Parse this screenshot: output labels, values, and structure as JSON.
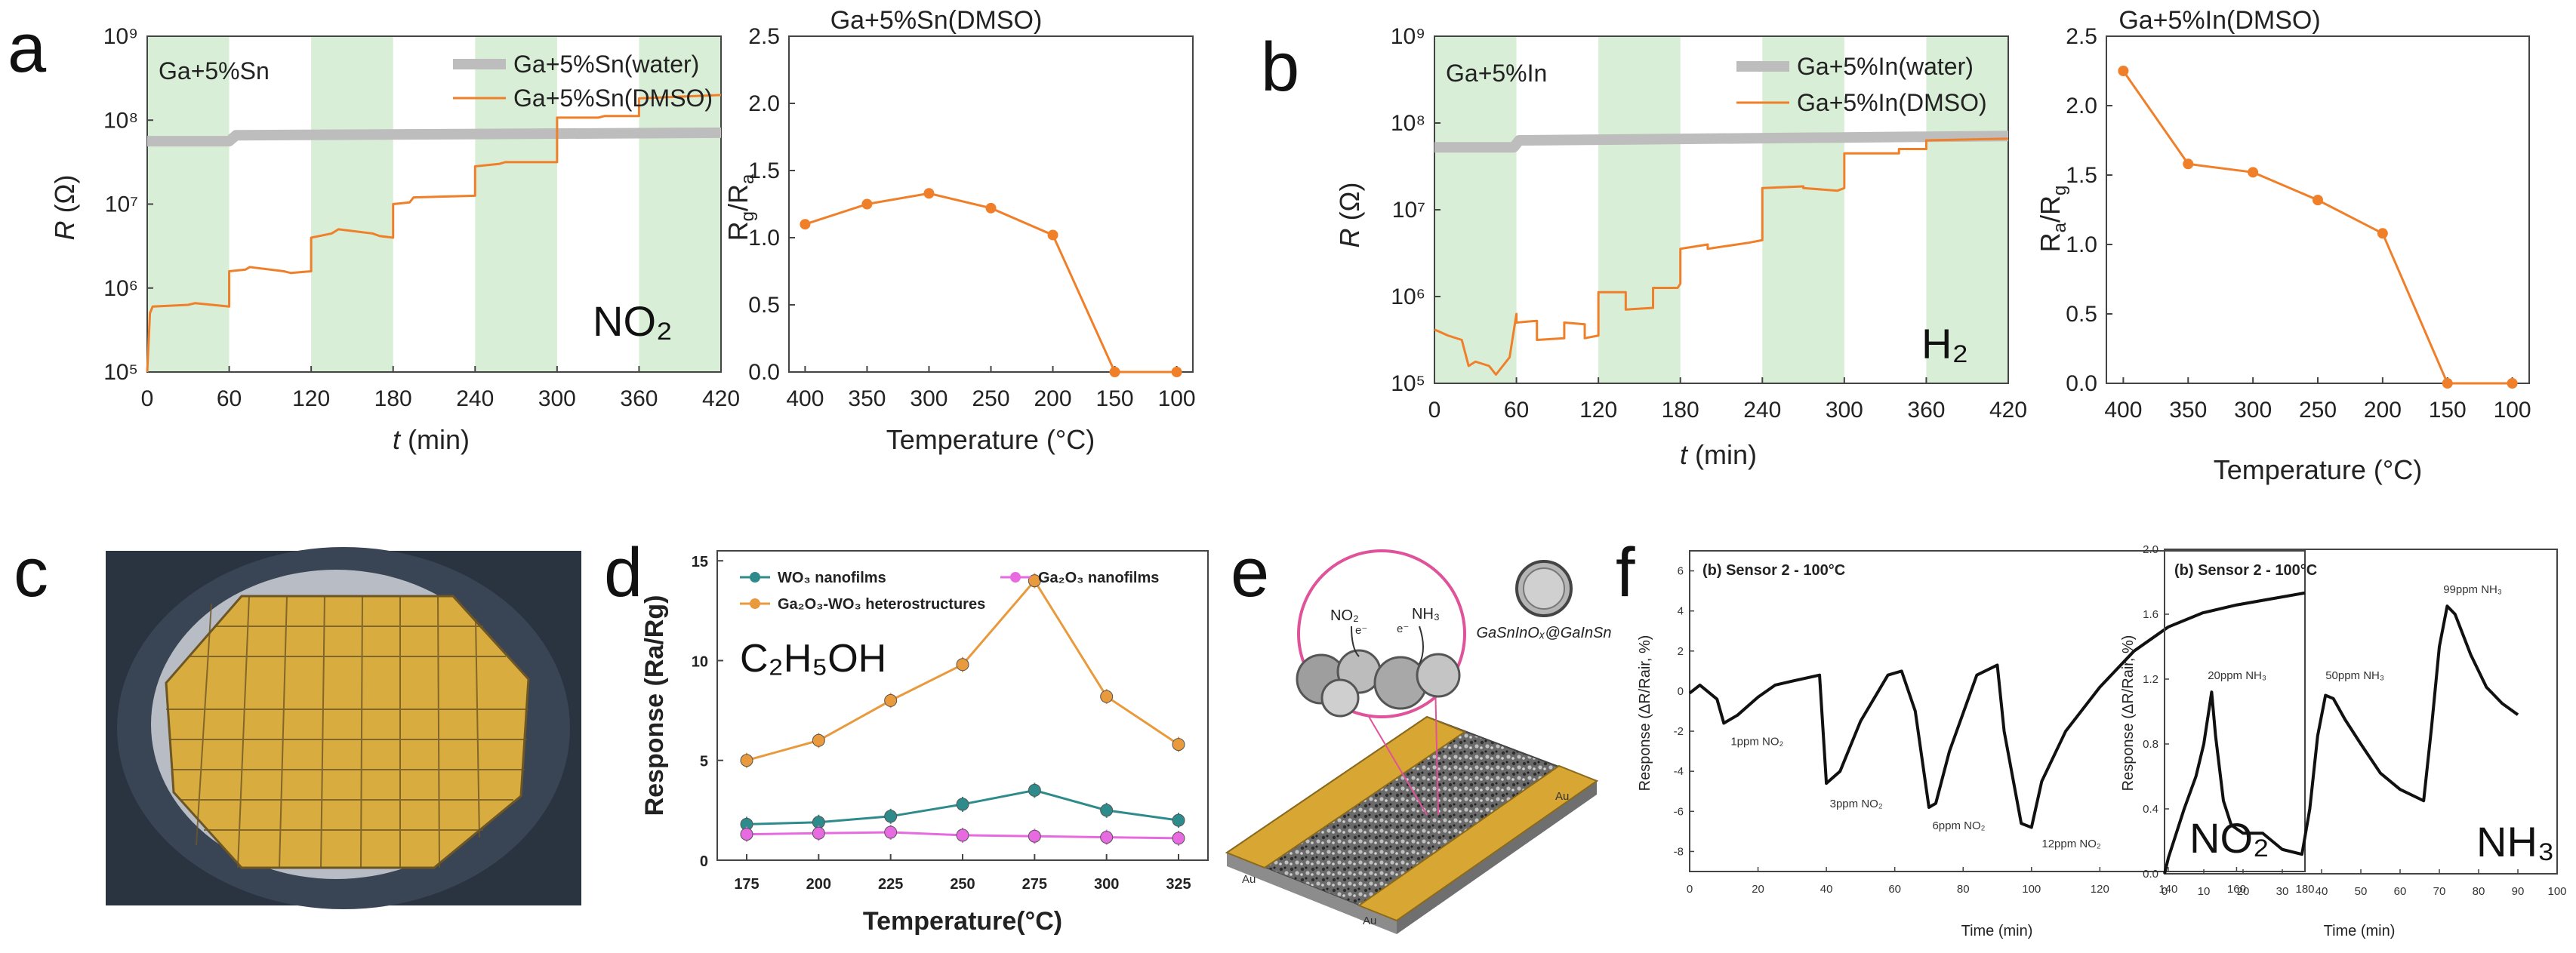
{
  "panel_labels": {
    "a": "a",
    "b": "b",
    "c": "c",
    "d": "d",
    "e": "e",
    "f": "f"
  },
  "colors": {
    "orange": "#f07f2a",
    "gray": "#bdbdbd",
    "green_band": "#d9eed6",
    "teal": "#2e8b8b",
    "magenta": "#e86ae0",
    "amber": "#e89a3c",
    "gold": "#d8a632",
    "pink": "#e0529a",
    "black": "#111111"
  },
  "panel_e": {
    "no2": "NO₂",
    "nh3": "NH₃",
    "electron": "e⁻",
    "particle_label": "GaSnInOₓ@GaInSn",
    "electrode_left": "Au",
    "electrode_right": "Au",
    "electrode_bottom": "Au"
  },
  "chart_data": [
    {
      "id": "a-left",
      "type": "line",
      "title": "",
      "xlabel_italic": "t",
      "xlabel_rest": " (min)",
      "ylabel_italic": "R",
      "ylabel_rest": " (Ω)",
      "x_ticks": [
        "0",
        "60",
        "120",
        "180",
        "240",
        "300",
        "360",
        "420"
      ],
      "y_ticks": [
        "10⁵",
        "10⁶",
        "10⁷",
        "10⁸",
        "10⁹"
      ],
      "xlim": [
        0,
        420
      ],
      "ylog_range": [
        5,
        9
      ],
      "bands": [
        [
          0,
          60
        ],
        [
          120,
          180
        ],
        [
          240,
          300
        ],
        [
          360,
          420
        ]
      ],
      "inner_label": "Ga+5%Sn",
      "gas": "NO₂",
      "legend": [
        "Ga+5%Sn(water)",
        "Ga+5%Sn(DMSO)"
      ],
      "series": [
        {
          "name": "Ga+5%Sn(water)",
          "style": "gray",
          "x": [
            0,
            60,
            65,
            420
          ],
          "log10y": [
            7.75,
            7.75,
            7.82,
            7.85
          ]
        },
        {
          "name": "Ga+5%Sn(DMSO)",
          "style": "orange",
          "x": [
            0,
            2,
            4,
            30,
            35,
            60,
            60,
            72,
            75,
            100,
            105,
            120,
            120,
            135,
            140,
            165,
            170,
            180,
            180,
            192,
            195,
            240,
            240,
            258,
            262,
            300,
            300,
            330,
            335,
            360,
            360,
            420
          ],
          "log10y": [
            5.0,
            5.7,
            5.78,
            5.8,
            5.82,
            5.78,
            6.2,
            6.22,
            6.25,
            6.2,
            6.18,
            6.2,
            6.6,
            6.65,
            6.7,
            6.65,
            6.62,
            6.6,
            7.0,
            7.02,
            7.08,
            7.1,
            7.45,
            7.48,
            7.5,
            7.5,
            8.03,
            8.03,
            8.05,
            8.05,
            8.26,
            8.3
          ]
        }
      ]
    },
    {
      "id": "a-right",
      "type": "line",
      "title": "Ga+5%Sn(DMSO)",
      "xlabel": "Temperature (°C)",
      "ylabel_main": "R",
      "ylabel_sub1": "g",
      "ylabel_sub2": "a",
      "categories": [
        "400",
        "350",
        "300",
        "250",
        "200",
        "150",
        "100"
      ],
      "values": [
        1.1,
        1.25,
        1.33,
        1.22,
        1.02,
        0.0,
        0.0
      ],
      "y_ticks": [
        "0.0",
        "0.5",
        "1.0",
        "1.5",
        "2.0",
        "2.5"
      ],
      "ylim": [
        0,
        2.5
      ]
    },
    {
      "id": "b-left",
      "type": "line",
      "title": "",
      "xlabel_italic": "t",
      "xlabel_rest": " (min)",
      "ylabel_italic": "R",
      "ylabel_rest": " (Ω)",
      "x_ticks": [
        "0",
        "60",
        "120",
        "180",
        "240",
        "300",
        "360",
        "420"
      ],
      "y_ticks": [
        "10⁵",
        "10⁶",
        "10⁷",
        "10⁸",
        "10⁹"
      ],
      "xlim": [
        0,
        420
      ],
      "ylog_range": [
        5,
        9
      ],
      "bands": [
        [
          0,
          60
        ],
        [
          120,
          180
        ],
        [
          240,
          300
        ],
        [
          360,
          420
        ]
      ],
      "inner_label": "Ga+5%In",
      "gas": "H₂",
      "legend": [
        "Ga+5%In(water)",
        "Ga+5%In(DMSO)"
      ],
      "series": [
        {
          "name": "Ga+5%In(water)",
          "style": "gray",
          "x": [
            0,
            58,
            62,
            420
          ],
          "log10y": [
            7.72,
            7.72,
            7.8,
            7.85
          ]
        },
        {
          "name": "Ga+5%In(DMSO)",
          "style": "orange",
          "x": [
            0,
            10,
            20,
            25,
            30,
            40,
            45,
            55,
            58,
            60,
            60,
            75,
            75,
            95,
            95,
            110,
            110,
            120,
            120,
            140,
            140,
            160,
            160,
            178,
            180,
            180,
            200,
            200,
            230,
            240,
            240,
            270,
            270,
            295,
            300,
            300,
            340,
            340,
            360,
            360,
            420
          ],
          "log10y": [
            5.62,
            5.55,
            5.5,
            5.2,
            5.25,
            5.2,
            5.1,
            5.3,
            5.6,
            5.8,
            5.7,
            5.72,
            5.5,
            5.52,
            5.7,
            5.68,
            5.52,
            5.55,
            6.05,
            6.05,
            5.85,
            5.87,
            6.1,
            6.1,
            6.15,
            6.55,
            6.6,
            6.55,
            6.62,
            6.65,
            7.25,
            7.27,
            7.25,
            7.22,
            7.25,
            7.65,
            7.65,
            7.7,
            7.7,
            7.8,
            7.82
          ]
        }
      ]
    },
    {
      "id": "b-right",
      "type": "line",
      "title": "Ga+5%In(DMSO)",
      "xlabel": "Temperature (°C)",
      "ylabel_main": "R",
      "ylabel_sub1": "a",
      "ylabel_sub2": "g",
      "categories": [
        "400",
        "350",
        "300",
        "250",
        "200",
        "150",
        "100"
      ],
      "values": [
        2.25,
        1.58,
        1.52,
        1.32,
        1.08,
        0.0,
        0.0
      ],
      "y_ticks": [
        "0.0",
        "0.5",
        "1.0",
        "1.5",
        "2.0",
        "2.5"
      ],
      "ylim": [
        0,
        2.5
      ]
    },
    {
      "id": "d",
      "type": "line",
      "xlabel": "Temperature(°C)",
      "ylabel": "Response (Ra/Rg)",
      "categories": [
        "175",
        "200",
        "225",
        "250",
        "275",
        "300",
        "325"
      ],
      "y_ticks": [
        "0",
        "5",
        "10",
        "15"
      ],
      "ylim": [
        0,
        15.5
      ],
      "inline_label": "C₂H₅OH",
      "series": [
        {
          "name": "WO₃ nanofilms",
          "style": "teal",
          "values": [
            1.8,
            1.9,
            2.2,
            2.8,
            3.5,
            2.5,
            2.0
          ]
        },
        {
          "name": "Ga₂O₃ nanofilms",
          "style": "magenta",
          "values": [
            1.3,
            1.35,
            1.4,
            1.25,
            1.2,
            1.15,
            1.1
          ]
        },
        {
          "name": "Ga₂O₃-WO₃ heterostructures",
          "style": "amber",
          "values": [
            5.0,
            6.0,
            8.0,
            9.8,
            14.0,
            8.2,
            5.8
          ]
        }
      ]
    },
    {
      "id": "f-left",
      "type": "line",
      "title": "(b) Sensor 2 - 100°C",
      "xlabel": "Time (min)",
      "ylabel": "Response (ΔR/Rair, %)",
      "x_ticks": [
        "0",
        "20",
        "40",
        "60",
        "80",
        "100",
        "120",
        "140",
        "160",
        "180"
      ],
      "y_ticks": [
        "-8",
        "-6",
        "-4",
        "-2",
        "0",
        "2",
        "4",
        "6"
      ],
      "xlim": [
        0,
        180
      ],
      "ylim": [
        -9,
        7
      ],
      "gas": "NO₂",
      "annotations": [
        {
          "text": "1ppm NO₂",
          "x": 12,
          "y": -2.7
        },
        {
          "text": "3ppm NO₂",
          "x": 41,
          "y": -5.8
        },
        {
          "text": "6ppm NO₂",
          "x": 71,
          "y": -6.9
        },
        {
          "text": "12ppm NO₂",
          "x": 103,
          "y": -7.8
        }
      ],
      "series": [
        {
          "name": "response",
          "style": "black",
          "x": [
            0,
            3,
            8,
            10,
            14,
            20,
            25,
            30,
            38,
            40,
            44,
            50,
            58,
            62,
            66,
            70,
            72,
            76,
            84,
            90,
            92,
            97,
            100,
            103,
            110,
            120,
            130,
            140,
            150,
            160,
            170,
            180
          ],
          "y": [
            -0.1,
            0.3,
            -0.4,
            -1.6,
            -1.2,
            -0.3,
            0.3,
            0.5,
            0.8,
            -4.6,
            -4.0,
            -1.5,
            0.8,
            1.0,
            -1.0,
            -5.8,
            -5.6,
            -3.0,
            0.8,
            1.3,
            -2.0,
            -6.6,
            -6.8,
            -4.5,
            -2.0,
            0.2,
            2.0,
            3.2,
            3.9,
            4.3,
            4.6,
            4.9
          ]
        }
      ]
    },
    {
      "id": "f-right",
      "type": "line",
      "title": "(b) Sensor 2 - 100°C",
      "xlabel": "Time (min)",
      "ylabel": "Response (ΔR/Rair, %)",
      "x_ticks": [
        "0",
        "10",
        "20",
        "30",
        "40",
        "50",
        "60",
        "70",
        "80",
        "90",
        "100"
      ],
      "y_ticks": [
        "0.0",
        "0.4",
        "0.8",
        "1.2",
        "1.6",
        "2.0"
      ],
      "xlim": [
        0,
        100
      ],
      "ylim": [
        0,
        2.0
      ],
      "gas": "NH₃",
      "annotations": [
        {
          "text": "20ppm NH₃",
          "x": 11,
          "y": 1.2
        },
        {
          "text": "50ppm NH₃",
          "x": 41,
          "y": 1.2
        },
        {
          "text": "99ppm NH₃",
          "x": 71,
          "y": 1.73
        }
      ],
      "series": [
        {
          "name": "response",
          "style": "black",
          "x": [
            0,
            1,
            3,
            5,
            8,
            10,
            12,
            13,
            15,
            17,
            20,
            25,
            30,
            35,
            37,
            39,
            41,
            43,
            46,
            50,
            55,
            60,
            66,
            68,
            70,
            72,
            74,
            78,
            82,
            86,
            90
          ],
          "y": [
            0.0,
            0.1,
            0.25,
            0.4,
            0.6,
            0.8,
            1.12,
            0.85,
            0.45,
            0.3,
            0.25,
            0.25,
            0.15,
            0.12,
            0.4,
            0.85,
            1.1,
            1.08,
            0.95,
            0.8,
            0.62,
            0.52,
            0.45,
            0.9,
            1.4,
            1.65,
            1.6,
            1.35,
            1.15,
            1.05,
            0.98
          ]
        }
      ]
    }
  ]
}
